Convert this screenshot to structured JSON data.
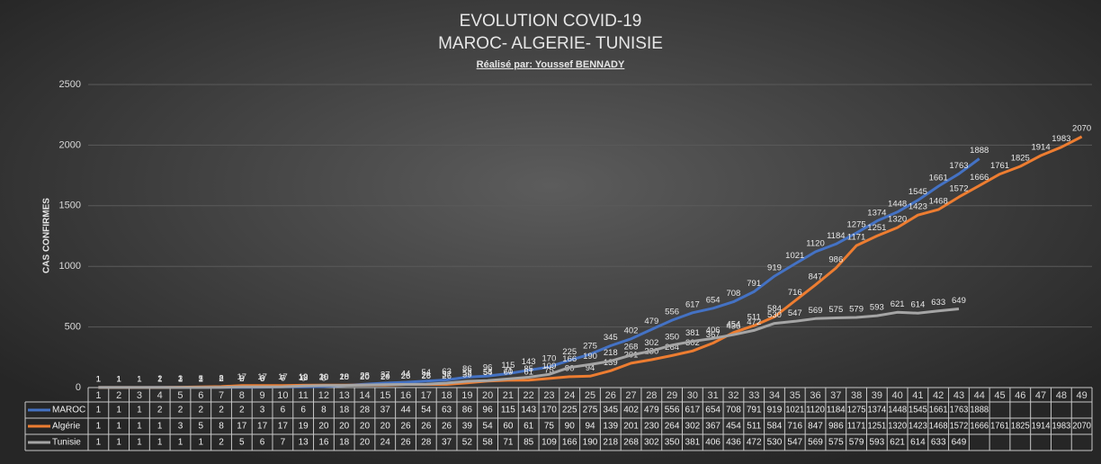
{
  "chart_data": {
    "type": "line",
    "title": "EVOLUTION COVID-19",
    "subtitle": "MAROC- ALGERIE- TUNISIE",
    "author": "Réalisé par: Youssef BENNADY",
    "y_label": "CAS CONFIRMES",
    "categories": [
      "1",
      "2",
      "3",
      "4",
      "5",
      "6",
      "7",
      "8",
      "9",
      "10",
      "11",
      "12",
      "13",
      "14",
      "15",
      "16",
      "17",
      "18",
      "19",
      "20",
      "21",
      "22",
      "23",
      "24",
      "25",
      "26",
      "27",
      "28",
      "29",
      "30",
      "31",
      "32",
      "33",
      "34",
      "35",
      "36",
      "37",
      "38",
      "39",
      "40",
      "41",
      "42",
      "43",
      "44",
      "45",
      "46",
      "47",
      "48",
      "49"
    ],
    "ylim": [
      0,
      2500
    ],
    "yticks": [
      0,
      500,
      1000,
      1500,
      2000,
      2500
    ],
    "grid": true,
    "series": [
      {
        "name": "MAROC",
        "color": "#4472c4",
        "values": [
          1,
          1,
          1,
          2,
          2,
          2,
          2,
          2,
          3,
          6,
          6,
          8,
          18,
          28,
          37,
          44,
          54,
          63,
          86,
          96,
          115,
          143,
          170,
          225,
          275,
          345,
          402,
          479,
          556,
          617,
          654,
          708,
          791,
          919,
          1021,
          1120,
          1184,
          1275,
          1374,
          1448,
          1545,
          1661,
          1763,
          1888,
          null,
          null,
          null,
          null,
          null
        ]
      },
      {
        "name": "Algérie",
        "color": "#ed7d31",
        "values": [
          1,
          1,
          1,
          1,
          3,
          5,
          8,
          17,
          17,
          17,
          19,
          20,
          20,
          20,
          20,
          26,
          26,
          26,
          39,
          54,
          60,
          61,
          75,
          90,
          94,
          139,
          201,
          230,
          264,
          302,
          367,
          454,
          511,
          584,
          716,
          847,
          986,
          1171,
          1251,
          1320,
          1423,
          1468,
          1572,
          1666,
          1761,
          1825,
          1914,
          1983,
          2070
        ]
      },
      {
        "name": "Tunisie",
        "color": "#a5a5a5",
        "values": [
          1,
          1,
          1,
          1,
          1,
          1,
          2,
          5,
          6,
          7,
          13,
          16,
          18,
          20,
          24,
          26,
          28,
          37,
          52,
          58,
          71,
          85,
          109,
          166,
          190,
          218,
          268,
          302,
          350,
          381,
          406,
          436,
          472,
          530,
          547,
          569,
          575,
          579,
          593,
          621,
          614,
          633,
          649,
          null,
          null,
          null,
          null,
          null,
          null
        ]
      }
    ]
  }
}
